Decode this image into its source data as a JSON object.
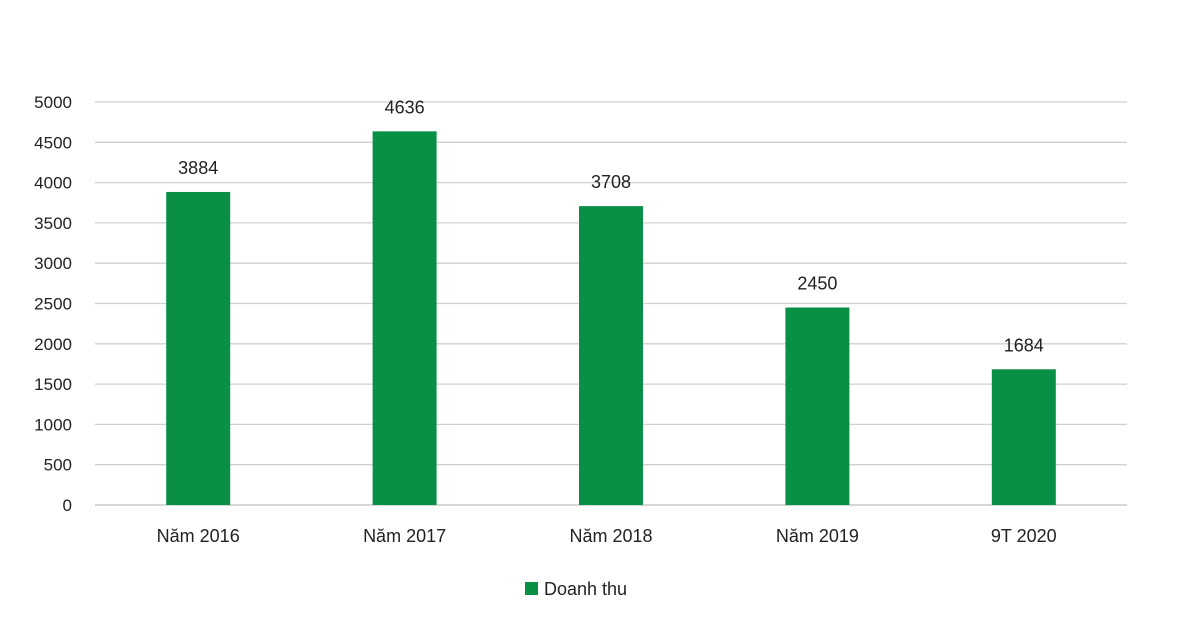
{
  "chart_data": {
    "type": "bar",
    "title": "",
    "categories": [
      "Năm 2016",
      "Năm 2017",
      "Năm 2018",
      "Năm 2019",
      "9T 2020"
    ],
    "series": [
      {
        "name": "Doanh thu",
        "values": [
          3884,
          4636,
          3708,
          2450,
          1684
        ],
        "color": "#0a8f47"
      }
    ],
    "ylim": [
      0,
      5000
    ],
    "yticks": [
      0,
      500,
      1000,
      1500,
      2000,
      2500,
      3000,
      3500,
      4000,
      4500,
      5000
    ],
    "grid": true,
    "legend": "bottom-center",
    "xlabel": "",
    "ylabel": ""
  }
}
